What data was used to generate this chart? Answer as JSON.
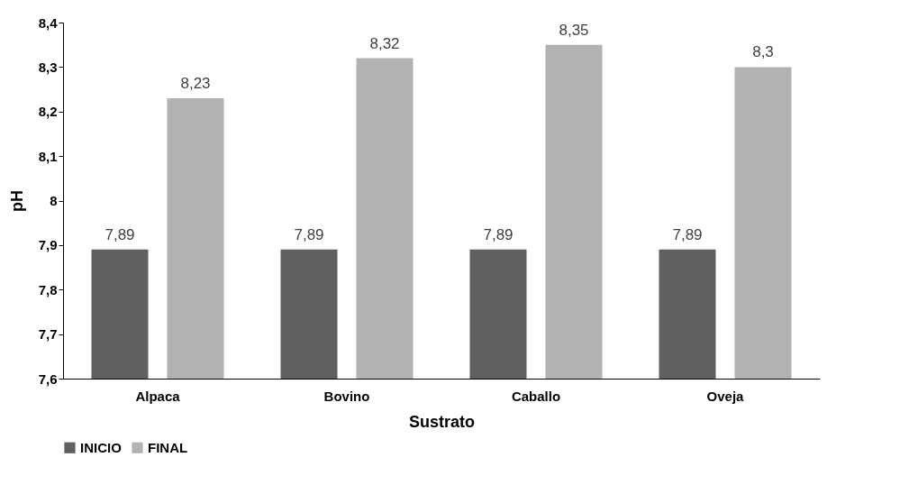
{
  "chart_data": {
    "type": "bar",
    "xlabel": "Sustrato",
    "ylabel": "pH",
    "categories": [
      "Alpaca",
      "Bovino",
      "Caballo",
      "Oveja"
    ],
    "series": [
      {
        "name": "INICIO",
        "color": "#606060",
        "values": [
          7.89,
          7.89,
          7.89,
          7.89
        ],
        "value_labels": [
          "7,89",
          "7,89",
          "7,89",
          "7,89"
        ]
      },
      {
        "name": "FINAL",
        "color": "#b2b2b2",
        "values": [
          8.23,
          8.32,
          8.35,
          8.3
        ],
        "value_labels": [
          "8,23",
          "8,32",
          "8,35",
          "8,3"
        ]
      }
    ],
    "ylim": [
      7.6,
      8.4
    ],
    "yticks": [
      {
        "value": 7.6,
        "label": "7,6"
      },
      {
        "value": 7.7,
        "label": "7,7"
      },
      {
        "value": 7.8,
        "label": "7,8"
      },
      {
        "value": 7.9,
        "label": "7,9"
      },
      8,
      {
        "value": 8.1,
        "label": "8,1"
      },
      {
        "value": 8.2,
        "label": "8,2"
      },
      {
        "value": 8.3,
        "label": "8,3"
      },
      {
        "value": 8.4,
        "label": "8,4"
      }
    ],
    "grid": false,
    "legend": "bottom"
  }
}
